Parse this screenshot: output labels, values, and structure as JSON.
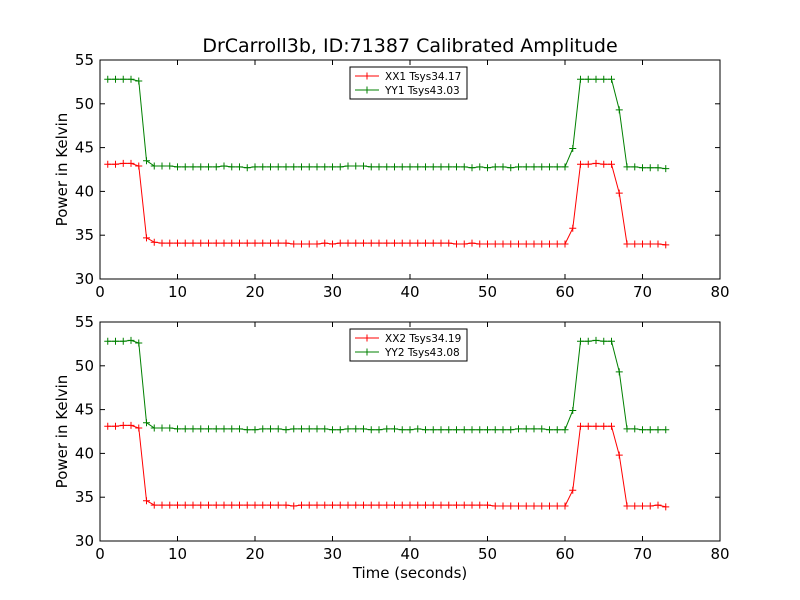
{
  "chart_data": [
    {
      "type": "line",
      "title": "DrCarroll3b, ID:71387 Calibrated Amplitude",
      "xlabel": "",
      "ylabel": "Power in Kelvin",
      "xlim": [
        0,
        80
      ],
      "ylim": [
        30,
        55
      ],
      "xticks": [
        "0",
        "10",
        "20",
        "30",
        "40",
        "50",
        "60",
        "70",
        "80"
      ],
      "yticks": [
        "30",
        "35",
        "40",
        "45",
        "50",
        "55"
      ],
      "legend_position": "top-center",
      "series": [
        {
          "name": "XX1 Tsys34.17",
          "color": "#ff0000",
          "x": [
            1,
            2,
            3,
            4,
            5,
            6,
            7,
            8,
            9,
            10,
            11,
            12,
            13,
            14,
            15,
            16,
            17,
            18,
            19,
            20,
            21,
            22,
            23,
            24,
            25,
            26,
            27,
            28,
            29,
            30,
            31,
            32,
            33,
            34,
            35,
            36,
            37,
            38,
            39,
            40,
            41,
            42,
            43,
            44,
            45,
            46,
            47,
            48,
            49,
            50,
            51,
            52,
            53,
            54,
            55,
            56,
            57,
            58,
            59,
            60,
            61,
            62,
            63,
            64,
            65,
            66,
            67,
            68,
            69,
            70,
            71,
            72,
            73
          ],
          "y": [
            43.1,
            43.1,
            43.2,
            43.2,
            42.9,
            34.7,
            34.2,
            34.1,
            34.1,
            34.1,
            34.1,
            34.1,
            34.1,
            34.1,
            34.1,
            34.1,
            34.1,
            34.1,
            34.1,
            34.1,
            34.1,
            34.1,
            34.1,
            34.1,
            34.0,
            34.0,
            34.0,
            34.0,
            34.1,
            34.0,
            34.1,
            34.1,
            34.1,
            34.1,
            34.1,
            34.1,
            34.1,
            34.1,
            34.1,
            34.1,
            34.1,
            34.1,
            34.1,
            34.1,
            34.1,
            34.0,
            34.0,
            34.1,
            34.0,
            34.0,
            34.0,
            34.0,
            34.0,
            34.0,
            34.0,
            34.0,
            34.0,
            34.0,
            34.0,
            34.0,
            35.8,
            43.1,
            43.1,
            43.2,
            43.1,
            43.1,
            39.8,
            34.0,
            34.0,
            34.0,
            34.0,
            34.0,
            33.9
          ]
        },
        {
          "name": "YY1 Tsys43.03",
          "color": "#008000",
          "x": [
            1,
            2,
            3,
            4,
            5,
            6,
            7,
            8,
            9,
            10,
            11,
            12,
            13,
            14,
            15,
            16,
            17,
            18,
            19,
            20,
            21,
            22,
            23,
            24,
            25,
            26,
            27,
            28,
            29,
            30,
            31,
            32,
            33,
            34,
            35,
            36,
            37,
            38,
            39,
            40,
            41,
            42,
            43,
            44,
            45,
            46,
            47,
            48,
            49,
            50,
            51,
            52,
            53,
            54,
            55,
            56,
            57,
            58,
            59,
            60,
            61,
            62,
            63,
            64,
            65,
            66,
            67,
            68,
            69,
            70,
            71,
            72,
            73
          ],
          "y": [
            52.8,
            52.8,
            52.8,
            52.8,
            52.6,
            43.5,
            42.9,
            42.9,
            42.9,
            42.8,
            42.8,
            42.8,
            42.8,
            42.8,
            42.8,
            42.9,
            42.8,
            42.8,
            42.7,
            42.8,
            42.8,
            42.8,
            42.8,
            42.8,
            42.8,
            42.8,
            42.8,
            42.8,
            42.8,
            42.8,
            42.8,
            42.9,
            42.9,
            42.9,
            42.8,
            42.8,
            42.8,
            42.8,
            42.8,
            42.8,
            42.8,
            42.8,
            42.8,
            42.8,
            42.8,
            42.8,
            42.8,
            42.7,
            42.8,
            42.7,
            42.8,
            42.8,
            42.7,
            42.8,
            42.8,
            42.8,
            42.8,
            42.8,
            42.8,
            42.8,
            44.9,
            52.8,
            52.8,
            52.8,
            52.8,
            52.8,
            49.3,
            42.8,
            42.8,
            42.7,
            42.7,
            42.7,
            42.6
          ]
        }
      ]
    },
    {
      "type": "line",
      "title": "",
      "xlabel": "Time (seconds)",
      "ylabel": "Power in Kelvin",
      "xlim": [
        0,
        80
      ],
      "ylim": [
        30,
        55
      ],
      "xticks": [
        "0",
        "10",
        "20",
        "30",
        "40",
        "50",
        "60",
        "70",
        "80"
      ],
      "yticks": [
        "30",
        "35",
        "40",
        "45",
        "50",
        "55"
      ],
      "legend_position": "top-center",
      "series": [
        {
          "name": "XX2 Tsys34.19",
          "color": "#ff0000",
          "x": [
            1,
            2,
            3,
            4,
            5,
            6,
            7,
            8,
            9,
            10,
            11,
            12,
            13,
            14,
            15,
            16,
            17,
            18,
            19,
            20,
            21,
            22,
            23,
            24,
            25,
            26,
            27,
            28,
            29,
            30,
            31,
            32,
            33,
            34,
            35,
            36,
            37,
            38,
            39,
            40,
            41,
            42,
            43,
            44,
            45,
            46,
            47,
            48,
            49,
            50,
            51,
            52,
            53,
            54,
            55,
            56,
            57,
            58,
            59,
            60,
            61,
            62,
            63,
            64,
            65,
            66,
            67,
            68,
            69,
            70,
            71,
            72,
            73
          ],
          "y": [
            43.1,
            43.1,
            43.2,
            43.2,
            42.9,
            34.6,
            34.1,
            34.1,
            34.1,
            34.1,
            34.1,
            34.1,
            34.1,
            34.1,
            34.1,
            34.1,
            34.1,
            34.1,
            34.1,
            34.1,
            34.1,
            34.1,
            34.1,
            34.1,
            34.0,
            34.1,
            34.1,
            34.1,
            34.1,
            34.1,
            34.1,
            34.1,
            34.1,
            34.1,
            34.1,
            34.1,
            34.1,
            34.1,
            34.1,
            34.1,
            34.1,
            34.1,
            34.1,
            34.1,
            34.1,
            34.1,
            34.1,
            34.1,
            34.1,
            34.1,
            34.0,
            34.0,
            34.0,
            34.0,
            34.0,
            34.0,
            34.0,
            34.0,
            34.0,
            34.0,
            35.8,
            43.1,
            43.1,
            43.1,
            43.1,
            43.1,
            39.8,
            34.0,
            34.0,
            34.0,
            34.0,
            34.1,
            33.9
          ]
        },
        {
          "name": "YY2 Tsys43.08",
          "color": "#008000",
          "x": [
            1,
            2,
            3,
            4,
            5,
            6,
            7,
            8,
            9,
            10,
            11,
            12,
            13,
            14,
            15,
            16,
            17,
            18,
            19,
            20,
            21,
            22,
            23,
            24,
            25,
            26,
            27,
            28,
            29,
            30,
            31,
            32,
            33,
            34,
            35,
            36,
            37,
            38,
            39,
            40,
            41,
            42,
            43,
            44,
            45,
            46,
            47,
            48,
            49,
            50,
            51,
            52,
            53,
            54,
            55,
            56,
            57,
            58,
            59,
            60,
            61,
            62,
            63,
            64,
            65,
            66,
            67,
            68,
            69,
            70,
            71,
            72,
            73
          ],
          "y": [
            52.8,
            52.8,
            52.8,
            52.9,
            52.6,
            43.5,
            42.9,
            42.9,
            42.9,
            42.8,
            42.8,
            42.8,
            42.8,
            42.8,
            42.8,
            42.8,
            42.8,
            42.8,
            42.7,
            42.7,
            42.8,
            42.8,
            42.8,
            42.7,
            42.8,
            42.8,
            42.8,
            42.8,
            42.8,
            42.7,
            42.7,
            42.8,
            42.8,
            42.8,
            42.7,
            42.7,
            42.8,
            42.8,
            42.7,
            42.7,
            42.8,
            42.7,
            42.7,
            42.7,
            42.7,
            42.7,
            42.7,
            42.7,
            42.7,
            42.7,
            42.7,
            42.7,
            42.7,
            42.8,
            42.8,
            42.8,
            42.8,
            42.7,
            42.7,
            42.7,
            44.9,
            52.8,
            52.8,
            52.9,
            52.8,
            52.8,
            49.3,
            42.8,
            42.8,
            42.7,
            42.7,
            42.7,
            42.7
          ]
        }
      ]
    }
  ]
}
